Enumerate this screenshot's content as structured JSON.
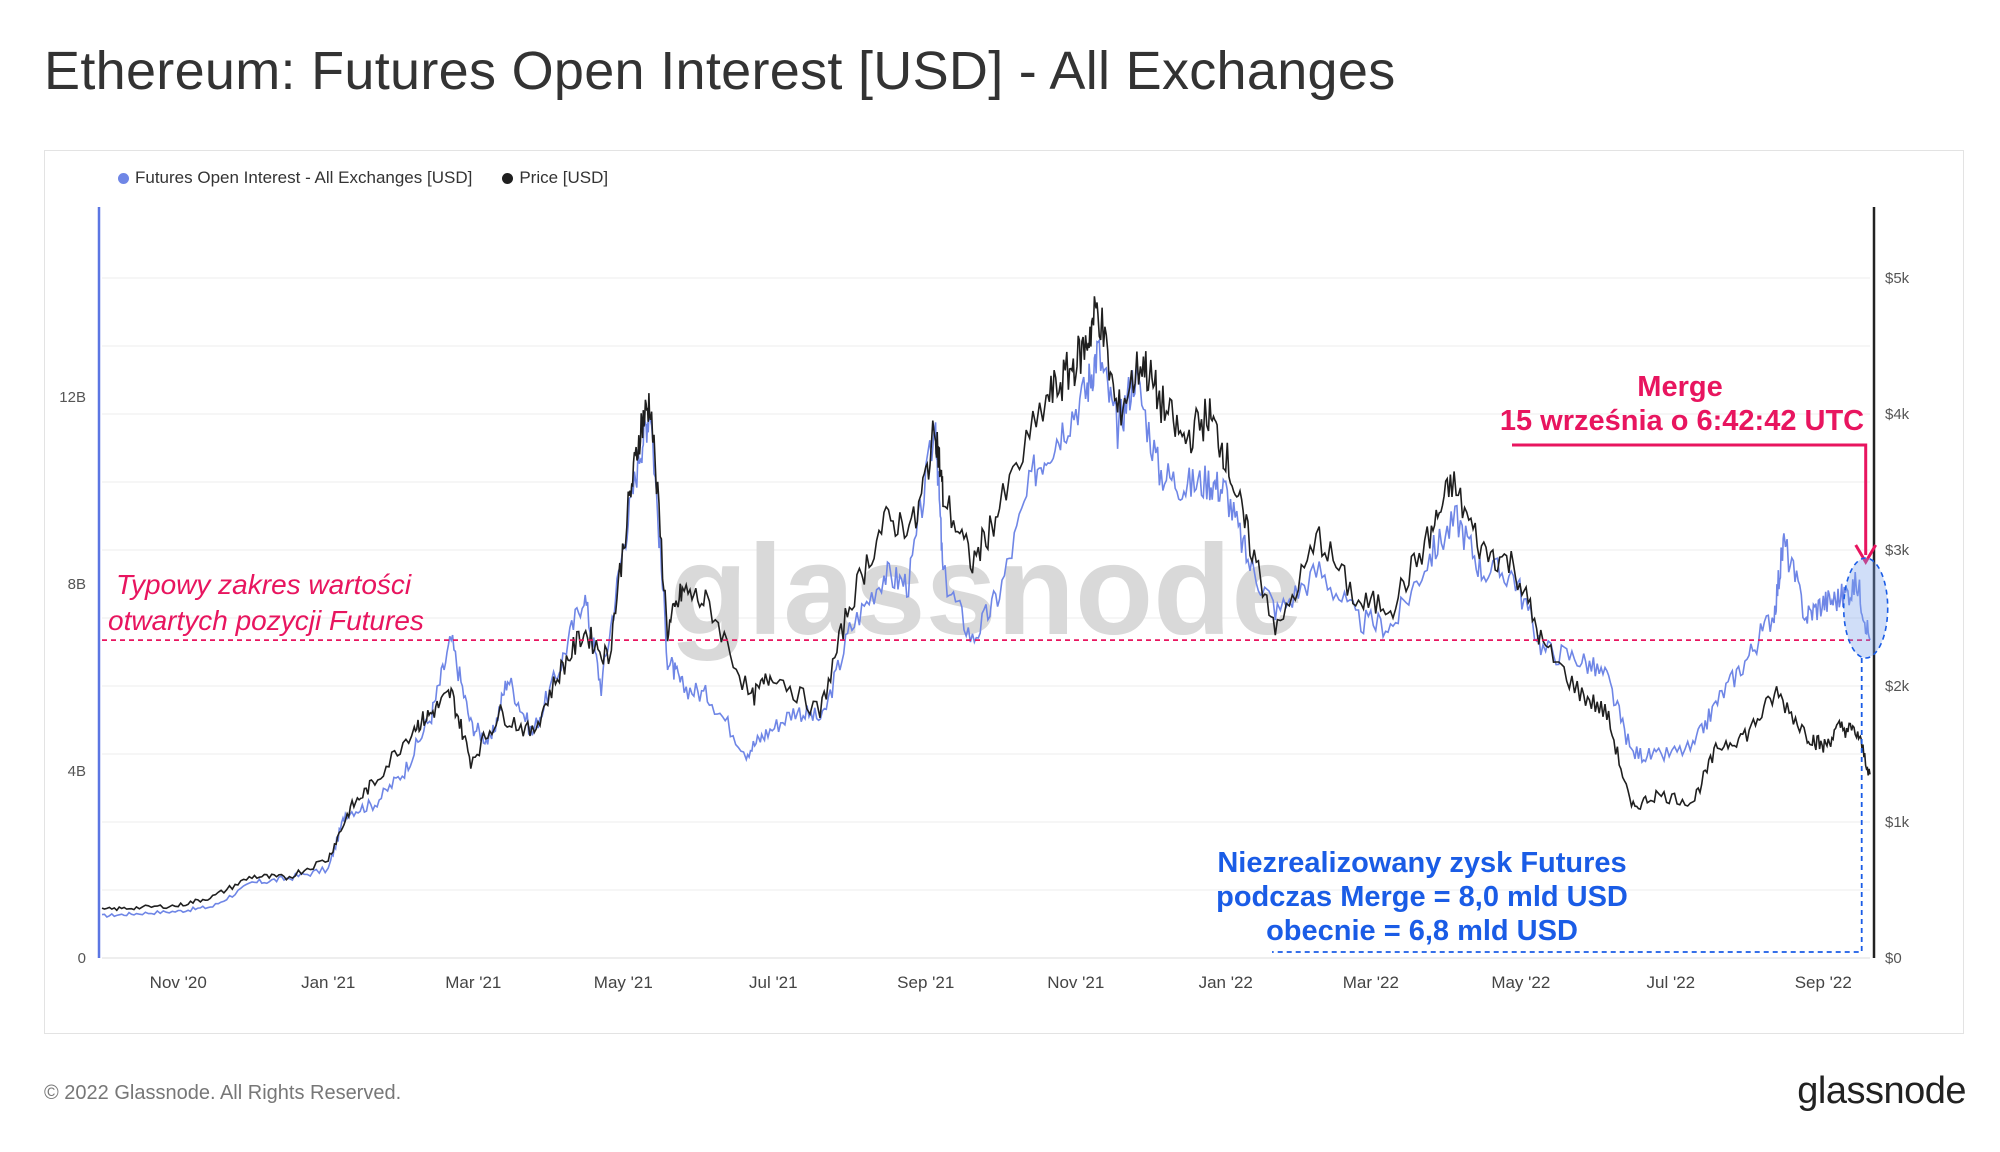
{
  "title": "Ethereum: Futures Open Interest [USD] - All Exchanges",
  "footer": "© 2022 Glassnode. All Rights Reserved.",
  "brand": "glassnode",
  "watermark": "glassnode",
  "colors": {
    "oi": "#6f86e6",
    "price": "#1f1f1f",
    "annotation_red": "#e8155f",
    "annotation_blue": "#1a5ce6"
  },
  "chart_data": {
    "type": "line",
    "legend": [
      {
        "name": "Futures Open Interest - All Exchanges [USD]",
        "color": "#6f86e6"
      },
      {
        "name": "Price [USD]",
        "color": "#1f1f1f"
      }
    ],
    "x_ticks": [
      "Nov '20",
      "Jan '21",
      "Mar '21",
      "May '21",
      "Jul '21",
      "Sep '21",
      "Nov '21",
      "Jan '22",
      "Mar '22",
      "May '22",
      "Jul '22",
      "Sep '22"
    ],
    "x_tick_dates": [
      "2020-11-01",
      "2021-01-01",
      "2021-03-01",
      "2021-05-01",
      "2021-07-01",
      "2021-09-01",
      "2021-11-01",
      "2022-01-01",
      "2022-03-01",
      "2022-05-01",
      "2022-07-01",
      "2022-09-01"
    ],
    "x_range": [
      "2020-10-01",
      "2022-09-20"
    ],
    "y_left": {
      "ticks": [
        "0",
        "4B",
        "8B",
        "12B"
      ],
      "values": [
        0,
        4,
        8,
        12
      ],
      "ylim": [
        0,
        16
      ],
      "unit": "B"
    },
    "y_right": {
      "ticks": [
        "$0",
        "$1k",
        "$2k",
        "$3k",
        "$4k",
        "$5k"
      ],
      "values": [
        0,
        1000,
        2000,
        3000,
        4000,
        5000
      ],
      "ylim": [
        0,
        5500
      ]
    },
    "series": [
      {
        "name": "Futures Open Interest - All Exchanges [USD]",
        "axis": "left",
        "points": [
          [
            "2020-10-01",
            0.9
          ],
          [
            "2020-10-15",
            0.95
          ],
          [
            "2020-11-01",
            1.0
          ],
          [
            "2020-11-15",
            1.1
          ],
          [
            "2020-12-01",
            1.6
          ],
          [
            "2020-12-15",
            1.7
          ],
          [
            "2021-01-01",
            1.9
          ],
          [
            "2021-01-08",
            3.1
          ],
          [
            "2021-01-20",
            3.3
          ],
          [
            "2021-02-01",
            4.0
          ],
          [
            "2021-02-12",
            5.2
          ],
          [
            "2021-02-20",
            6.8
          ],
          [
            "2021-02-28",
            5.0
          ],
          [
            "2021-03-08",
            4.6
          ],
          [
            "2021-03-15",
            6.0
          ],
          [
            "2021-03-25",
            4.8
          ],
          [
            "2021-04-05",
            6.2
          ],
          [
            "2021-04-15",
            7.8
          ],
          [
            "2021-04-22",
            5.8
          ],
          [
            "2021-05-01",
            8.8
          ],
          [
            "2021-05-08",
            10.9
          ],
          [
            "2021-05-12",
            11.8
          ],
          [
            "2021-05-19",
            6.4
          ],
          [
            "2021-05-25",
            5.8
          ],
          [
            "2021-06-05",
            5.6
          ],
          [
            "2021-06-20",
            4.4
          ],
          [
            "2021-06-28",
            4.8
          ],
          [
            "2021-07-10",
            5.3
          ],
          [
            "2021-07-21",
            5.1
          ],
          [
            "2021-08-01",
            7.0
          ],
          [
            "2021-08-15",
            8.2
          ],
          [
            "2021-08-25",
            8.0
          ],
          [
            "2021-09-05",
            11.4
          ],
          [
            "2021-09-08",
            8.2
          ],
          [
            "2021-09-20",
            6.8
          ],
          [
            "2021-10-01",
            7.8
          ],
          [
            "2021-10-15",
            10.4
          ],
          [
            "2021-10-25",
            11.2
          ],
          [
            "2021-11-05",
            12.1
          ],
          [
            "2021-11-10",
            13.0
          ],
          [
            "2021-11-18",
            11.3
          ],
          [
            "2021-11-25",
            12.5
          ],
          [
            "2021-12-05",
            10.4
          ],
          [
            "2021-12-15",
            10.1
          ],
          [
            "2021-12-25",
            10.2
          ],
          [
            "2022-01-01",
            10.0
          ],
          [
            "2022-01-10",
            8.5
          ],
          [
            "2022-01-22",
            7.4
          ],
          [
            "2022-02-08",
            8.3
          ],
          [
            "2022-02-24",
            7.2
          ],
          [
            "2022-03-10",
            7.1
          ],
          [
            "2022-03-25",
            8.6
          ],
          [
            "2022-04-05",
            9.4
          ],
          [
            "2022-04-15",
            8.3
          ],
          [
            "2022-04-28",
            8.2
          ],
          [
            "2022-05-10",
            6.6
          ],
          [
            "2022-05-25",
            6.4
          ],
          [
            "2022-06-05",
            6.0
          ],
          [
            "2022-06-15",
            4.4
          ],
          [
            "2022-06-25",
            4.3
          ],
          [
            "2022-07-10",
            4.5
          ],
          [
            "2022-07-20",
            5.5
          ],
          [
            "2022-08-01",
            6.4
          ],
          [
            "2022-08-12",
            7.4
          ],
          [
            "2022-08-16",
            8.9
          ],
          [
            "2022-08-25",
            7.3
          ],
          [
            "2022-09-01",
            7.6
          ],
          [
            "2022-09-08",
            7.7
          ],
          [
            "2022-09-15",
            8.0
          ],
          [
            "2022-09-20",
            6.8
          ]
        ]
      },
      {
        "name": "Price [USD]",
        "axis": "right",
        "points": [
          [
            "2020-10-01",
            355
          ],
          [
            "2020-10-15",
            370
          ],
          [
            "2020-11-01",
            385
          ],
          [
            "2020-11-15",
            450
          ],
          [
            "2020-12-01",
            600
          ],
          [
            "2020-12-15",
            590
          ],
          [
            "2021-01-01",
            730
          ],
          [
            "2021-01-10",
            1100
          ],
          [
            "2021-01-20",
            1300
          ],
          [
            "2021-02-05",
            1700
          ],
          [
            "2021-02-12",
            1800
          ],
          [
            "2021-02-20",
            1950
          ],
          [
            "2021-02-28",
            1450
          ],
          [
            "2021-03-12",
            1800
          ],
          [
            "2021-03-25",
            1650
          ],
          [
            "2021-04-05",
            2100
          ],
          [
            "2021-04-15",
            2400
          ],
          [
            "2021-04-25",
            2200
          ],
          [
            "2021-05-03",
            3300
          ],
          [
            "2021-05-08",
            3900
          ],
          [
            "2021-05-12",
            4100
          ],
          [
            "2021-05-19",
            2400
          ],
          [
            "2021-05-25",
            2700
          ],
          [
            "2021-06-05",
            2600
          ],
          [
            "2021-06-22",
            1900
          ],
          [
            "2021-07-01",
            2100
          ],
          [
            "2021-07-20",
            1800
          ],
          [
            "2021-08-01",
            2600
          ],
          [
            "2021-08-15",
            3200
          ],
          [
            "2021-08-28",
            3200
          ],
          [
            "2021-09-05",
            3900
          ],
          [
            "2021-09-08",
            3400
          ],
          [
            "2021-09-20",
            2900
          ],
          [
            "2021-10-01",
            3300
          ],
          [
            "2021-10-20",
            4100
          ],
          [
            "2021-10-29",
            4300
          ],
          [
            "2021-11-05",
            4500
          ],
          [
            "2021-11-10",
            4800
          ],
          [
            "2021-11-18",
            4000
          ],
          [
            "2021-11-28",
            4400
          ],
          [
            "2021-12-05",
            4100
          ],
          [
            "2021-12-15",
            3800
          ],
          [
            "2021-12-25",
            4000
          ],
          [
            "2022-01-01",
            3700
          ],
          [
            "2022-01-10",
            3100
          ],
          [
            "2022-01-22",
            2400
          ],
          [
            "2022-02-08",
            3100
          ],
          [
            "2022-02-24",
            2600
          ],
          [
            "2022-03-10",
            2600
          ],
          [
            "2022-03-25",
            3100
          ],
          [
            "2022-04-03",
            3500
          ],
          [
            "2022-04-15",
            3000
          ],
          [
            "2022-04-28",
            2900
          ],
          [
            "2022-05-10",
            2300
          ],
          [
            "2022-05-25",
            1950
          ],
          [
            "2022-06-05",
            1800
          ],
          [
            "2022-06-15",
            1100
          ],
          [
            "2022-06-25",
            1200
          ],
          [
            "2022-07-10",
            1150
          ],
          [
            "2022-07-20",
            1550
          ],
          [
            "2022-08-01",
            1650
          ],
          [
            "2022-08-13",
            1950
          ],
          [
            "2022-08-25",
            1650
          ],
          [
            "2022-09-01",
            1550
          ],
          [
            "2022-09-08",
            1700
          ],
          [
            "2022-09-15",
            1650
          ],
          [
            "2022-09-20",
            1350
          ]
        ]
      }
    ],
    "reference_line": {
      "axis": "left",
      "value": 6.8
    },
    "annotations": {
      "typical_range": [
        "Typowy zakres wartości",
        "otwartych pozycji Futures"
      ],
      "merge_title": "Merge",
      "merge_subtitle": "15 września o 6:42:42 UTC",
      "merge_date": "2022-09-15",
      "profit_lines": [
        "Niezrealizowany zysk Futures",
        "podczas Merge = 8,0 mld USD",
        "obecnie =  6,8 mld USD"
      ]
    }
  }
}
